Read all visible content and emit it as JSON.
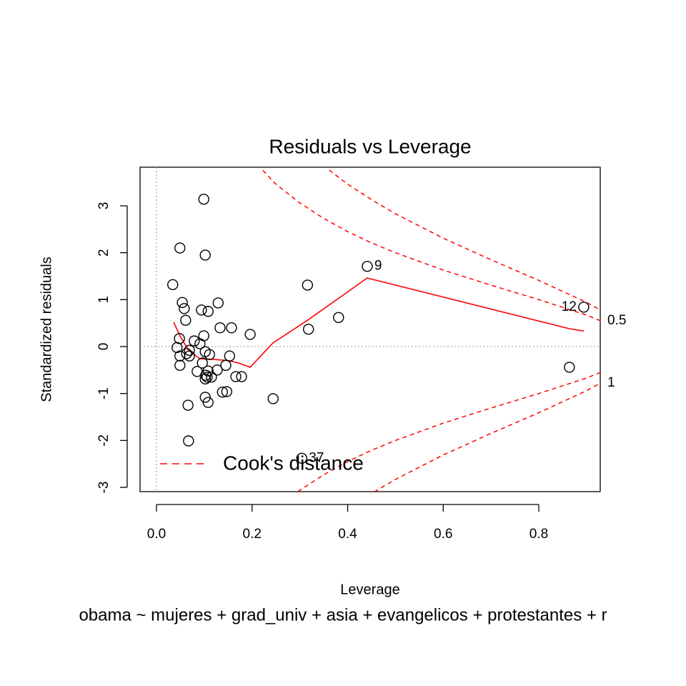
{
  "chart_data": {
    "type": "scatter",
    "title": "Residuals vs Leverage",
    "x_label": "Leverage",
    "y_label": "Standardized residuals",
    "subtitle": "obama ~ mujeres + grad_univ + asia + evangelicos + protestantes + r",
    "xlim": [
      -0.0344,
      0.9286
    ],
    "ylim": [
      -3.091,
      3.822
    ],
    "xticks": [
      {
        "value": 0,
        "label": "0.0"
      },
      0.2,
      0.4,
      0.6,
      0.8
    ],
    "yticks": [
      -3,
      -2,
      -1,
      0,
      1,
      2,
      3
    ],
    "reference_lines": true,
    "x": [
      0.099,
      0.049,
      0.102,
      0.034,
      0.054,
      0.058,
      0.094,
      0.108,
      0.129,
      0.061,
      0.133,
      0.157,
      0.099,
      0.196,
      0.048,
      0.079,
      0.091,
      0.043,
      0.069,
      0.102,
      0.063,
      0.069,
      0.049,
      0.111,
      0.153,
      0.096,
      0.049,
      0.145,
      0.085,
      0.127,
      0.108,
      0.103,
      0.115,
      0.102,
      0.106,
      0.166,
      0.178,
      0.138,
      0.147,
      0.102,
      0.108,
      0.066,
      0.244,
      0.067,
      0.316,
      0.318,
      0.381,
      0.441,
      0.894,
      0.864,
      0.304
    ],
    "values": [
      3.14,
      2.1,
      1.95,
      1.32,
      0.94,
      0.81,
      0.78,
      0.75,
      0.93,
      0.56,
      0.4,
      0.4,
      0.23,
      0.26,
      0.17,
      0.12,
      0.06,
      -0.02,
      -0.08,
      -0.11,
      -0.15,
      -0.2,
      -0.2,
      -0.17,
      -0.2,
      -0.35,
      -0.4,
      -0.4,
      -0.53,
      -0.5,
      -0.52,
      -0.61,
      -0.65,
      -0.69,
      -0.65,
      -0.64,
      -0.64,
      -0.97,
      -0.96,
      -1.08,
      -1.19,
      -1.25,
      -1.11,
      -2.01,
      1.31,
      0.37,
      0.62,
      1.71,
      0.84,
      -0.44,
      -2.38
    ],
    "point_labels": [
      null,
      null,
      null,
      null,
      null,
      null,
      null,
      null,
      null,
      null,
      null,
      null,
      null,
      null,
      null,
      null,
      null,
      null,
      null,
      null,
      null,
      null,
      null,
      null,
      null,
      null,
      null,
      null,
      null,
      null,
      null,
      null,
      null,
      null,
      null,
      null,
      null,
      null,
      null,
      null,
      null,
      null,
      null,
      null,
      null,
      null,
      null,
      "9",
      "12",
      null,
      "37"
    ],
    "point_color": "#000000",
    "smoother": {
      "color": "#ff0000",
      "x": [
        0.036,
        0.049,
        0.067,
        0.091,
        0.115,
        0.151,
        0.172,
        0.196,
        0.244,
        0.316,
        0.441,
        0.864,
        0.894
      ],
      "values": [
        0.52,
        0.23,
        -0.08,
        -0.26,
        -0.27,
        -0.3,
        -0.35,
        -0.44,
        0.08,
        0.56,
        1.46,
        0.38,
        0.33
      ]
    },
    "cook_color": "#ff0000",
    "cook_curves": [
      {
        "label": "0.5",
        "x": [
          0.2,
          0.25,
          0.3,
          0.35,
          0.4,
          0.45,
          0.5,
          0.6,
          0.7,
          0.8,
          0.9,
          0.929
        ],
        "upper": [
          4.0,
          3.46,
          3.06,
          2.73,
          2.45,
          2.21,
          2.0,
          1.63,
          1.31,
          1.0,
          0.67,
          0.55
        ],
        "lower": [
          -4.0,
          -3.46,
          -3.06,
          -2.73,
          -2.45,
          -2.21,
          -2.0,
          -1.63,
          -1.31,
          -1.0,
          -0.67,
          -0.55
        ]
      },
      {
        "label": "1",
        "x": [
          0.3,
          0.35,
          0.4,
          0.45,
          0.5,
          0.6,
          0.7,
          0.8,
          0.9,
          0.929
        ],
        "upper": [
          4.32,
          3.85,
          3.46,
          3.13,
          2.83,
          2.31,
          1.85,
          1.41,
          0.94,
          0.78
        ],
        "lower": [
          -4.32,
          -3.85,
          -3.46,
          -3.13,
          -2.83,
          -2.31,
          -1.85,
          -1.41,
          -0.94,
          -0.78
        ]
      }
    ],
    "legend": "Cook's distance"
  }
}
